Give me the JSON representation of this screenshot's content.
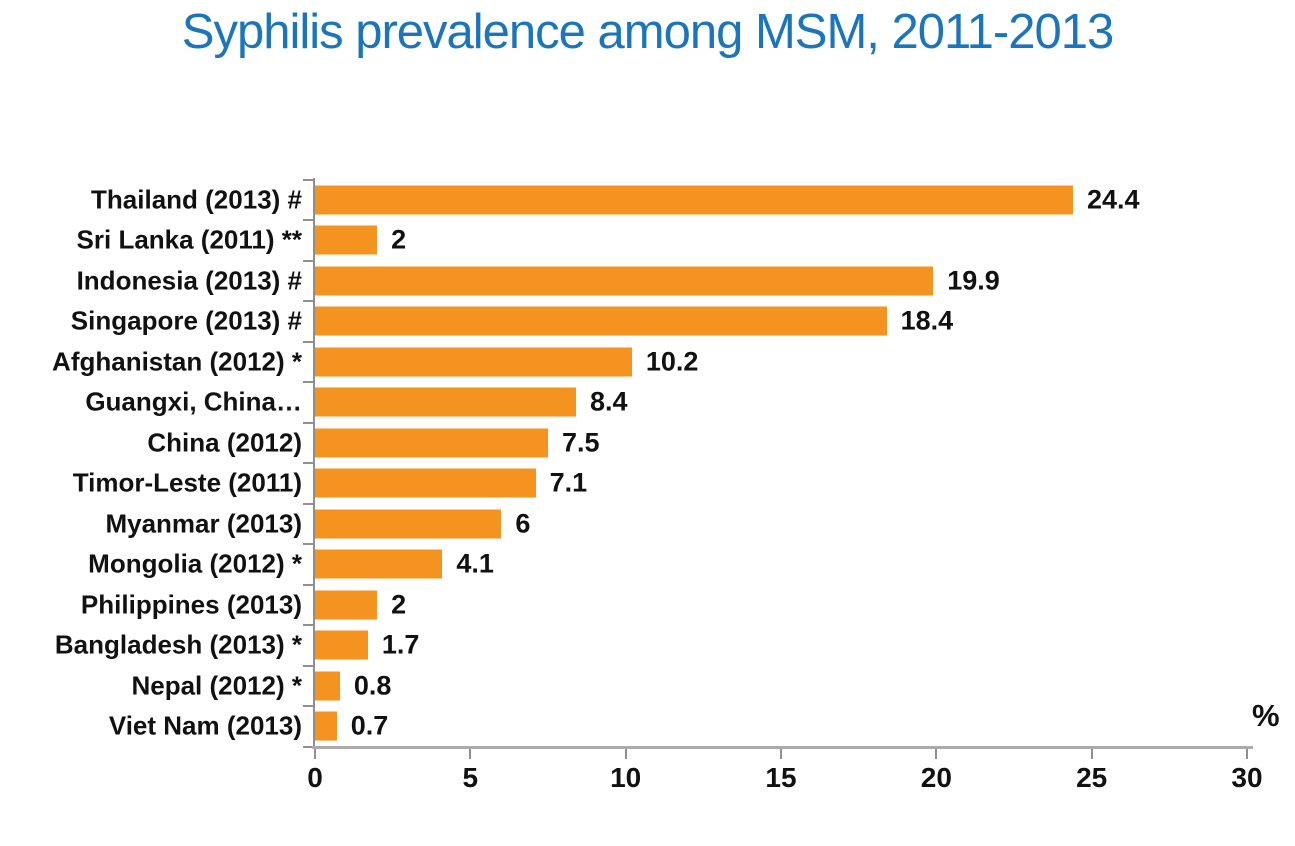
{
  "title": {
    "text": "Syphilis prevalence among MSM, 2011-2013",
    "color": "#1b75bc"
  },
  "chart_data": {
    "type": "bar",
    "orientation": "horizontal",
    "title": "Syphilis prevalence among MSM, 2011-2013",
    "categories": [
      "Thailand (2013) #",
      "Sri Lanka (2011) **",
      "Indonesia (2013) #",
      "Singapore (2013) #",
      "Afghanistan (2012) *",
      "Guangxi, China…",
      "China (2012)",
      "Timor-Leste (2011)",
      "Myanmar (2013)",
      "Mongolia (2012) *",
      "Philippines (2013)",
      "Bangladesh (2013) *",
      "Nepal (2012) *",
      "Viet Nam (2013)"
    ],
    "values": [
      24.4,
      2,
      19.9,
      18.4,
      10.2,
      8.4,
      7.5,
      7.1,
      6,
      4.1,
      2,
      1.7,
      0.8,
      0.7
    ],
    "value_labels": [
      "24.4",
      "2",
      "19.9",
      "18.4",
      "10.2",
      "8.4",
      "7.5",
      "7.1",
      "6",
      "4.1",
      "2",
      "1.7",
      "0.8",
      "0.7"
    ],
    "xlabel": "%",
    "x_ticks": [
      0,
      5,
      10,
      15,
      20,
      25,
      30
    ],
    "xlim": [
      0,
      30
    ],
    "grid": false,
    "legend": false,
    "data_labels": true,
    "colors": {
      "bar": "#f4931f",
      "axis_line": "#ababab",
      "tick": "#8f8f8f",
      "text": "#111111",
      "title": "#1b75bc"
    }
  }
}
